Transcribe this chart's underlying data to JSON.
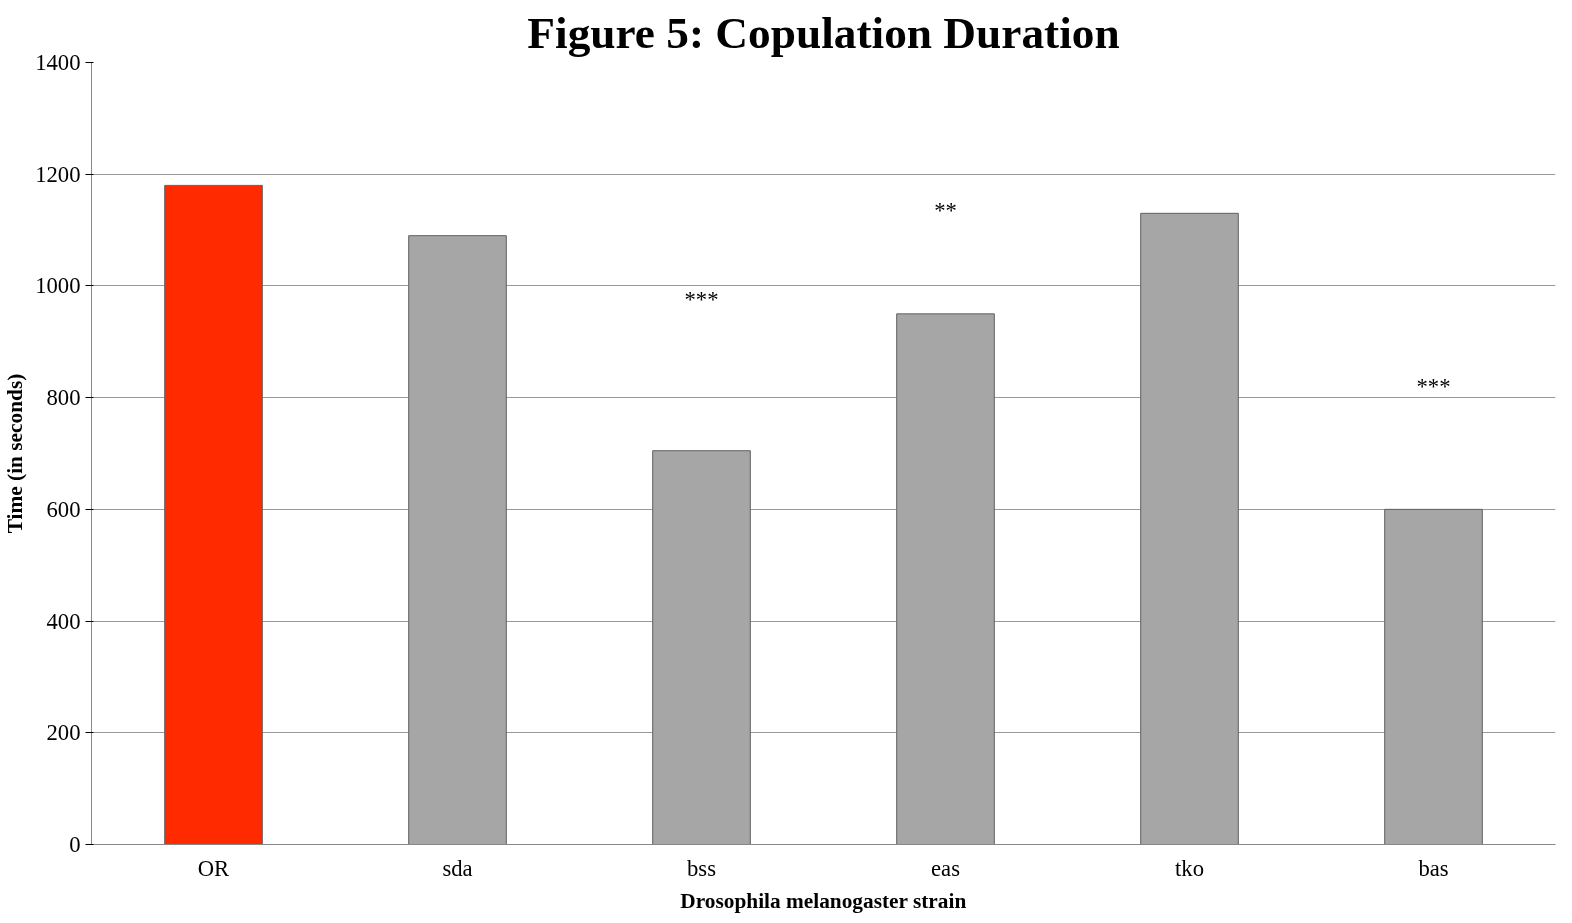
{
  "chart_data": {
    "type": "bar",
    "title": "Figure 5: Copulation Duration",
    "xlabel": "Drosophila melanogaster strain",
    "ylabel": "Time (in seconds)",
    "categories": [
      "OR",
      "sda",
      "bss",
      "eas",
      "tko",
      "bas"
    ],
    "values": [
      1180,
      1090,
      705,
      950,
      1130,
      600
    ],
    "colors": [
      "#ff2a00",
      "#a6a6a6",
      "#a6a6a6",
      "#a6a6a6",
      "#a6a6a6",
      "#a6a6a6"
    ],
    "ylim": [
      0,
      1400
    ],
    "yticks": [
      0,
      200,
      400,
      600,
      800,
      1000,
      1200,
      1400
    ],
    "grid": "y",
    "annotations": [
      "***",
      "**",
      "***"
    ]
  }
}
